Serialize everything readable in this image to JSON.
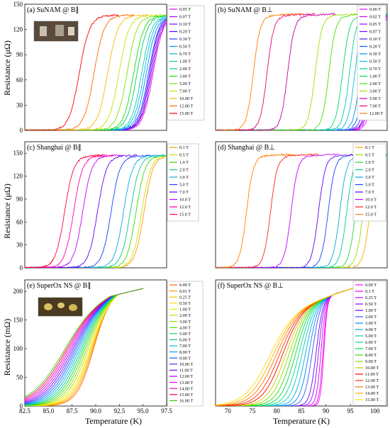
{
  "figure": {
    "ylabel_top": "Resistance (μΩ)",
    "ylabel_mid": "Resistance (μΩ)",
    "ylabel_bot": "Resistance (mΩ)",
    "xlabel": "Temperature (K)"
  },
  "chart_data": [
    {
      "id": "a",
      "type": "line",
      "title": "(a)  SuNAM @ B∥",
      "xlim": [
        82.5,
        95.0
      ],
      "ylim": [
        0,
        150
      ],
      "yticks": [
        0,
        30,
        60,
        90,
        120,
        150
      ],
      "xticks": [],
      "rn": 140,
      "width": 0.45,
      "legend_labels": [
        "0.05 T",
        "0.07 T",
        "0.10 T",
        "0.20 T",
        "0.30 T",
        "0.50 T",
        "0.70 T",
        "1.00 T",
        "2.00 T",
        "3.00 T",
        "5.00 T",
        "7.00 T",
        "10.00 T",
        "12.00 T",
        "15.00 T"
      ],
      "tc": [
        93.8,
        93.7,
        93.6,
        93.5,
        93.4,
        93.2,
        93.0,
        92.8,
        92.4,
        92.1,
        91.5,
        90.8,
        89.8,
        88.6,
        87.3
      ],
      "colors": [
        "#e000ff",
        "#b100f0",
        "#7c00e8",
        "#4e00f0",
        "#1f3cff",
        "#0088ff",
        "#00b6e8",
        "#00d0a8",
        "#00d060",
        "#10e000",
        "#7ee000",
        "#c8e000",
        "#ffb800",
        "#ff6a00",
        "#ff0000"
      ],
      "end_mode": "right"
    },
    {
      "id": "b",
      "type": "line",
      "title": "(b)  SuNAM @ B⊥",
      "xlim": [
        70,
        95
      ],
      "ylim": [
        0,
        150
      ],
      "yticks": [],
      "xticks": [],
      "rn": 140,
      "width": 0.5,
      "legend_labels": [
        "0.00 T",
        "0.02 T",
        "0.05 T",
        "0.07 T",
        "0.10 T",
        "0.20 T",
        "0.30 T",
        "0.50 T",
        "0.70 T",
        "1.00 T",
        "2.00 T",
        "3.00 T",
        "5.00 T",
        "7.00 T",
        "12.00 T"
      ],
      "tc": [
        93.2,
        92.9,
        92.7,
        92.5,
        92.2,
        91.7,
        91.1,
        90.3,
        89.5,
        88.5,
        86.5,
        84.5,
        80.5,
        77.5,
        75.5
      ],
      "colors": [
        "#ff00ff",
        "#d000ff",
        "#9c00ff",
        "#6a00ff",
        "#3a20ff",
        "#0055ff",
        "#0090ff",
        "#00c0e0",
        "#00d0a0",
        "#00d860",
        "#40e000",
        "#a0e000",
        "#c000a0",
        "#e60073",
        "#ff8000"
      ],
      "end_mode": "right"
    },
    {
      "id": "c",
      "type": "line",
      "title": "(c)  Shanghai @ B∥",
      "xlim": [
        82.5,
        95.0
      ],
      "ylim": [
        0,
        165
      ],
      "yticks": [
        0,
        30,
        60,
        90,
        120,
        150
      ],
      "xticks": [],
      "rn": 150,
      "width": 0.4,
      "legend_labels": [
        "0.1 T",
        "0.5 T",
        "1.0 T",
        "2.0 T",
        "3.0 T",
        "5.0 T",
        "7.0 T",
        "10.0 T",
        "12.0 T",
        "15.0 T"
      ],
      "tc": [
        93.0,
        92.8,
        92.3,
        91.8,
        91.2,
        90.1,
        88.9,
        87.6,
        86.8,
        86.0
      ],
      "colors": [
        "#ff9900",
        "#ccdd00",
        "#33dd00",
        "#00cc88",
        "#00aadd",
        "#1a40ff",
        "#5a00ff",
        "#c000ff",
        "#ff00aa",
        "#ff0033"
      ],
      "end_mode": "right"
    },
    {
      "id": "d",
      "type": "line",
      "title": "(d)  Shanghai @ B⊥",
      "xlim": [
        70,
        95
      ],
      "ylim": [
        0,
        165
      ],
      "yticks": [],
      "xticks": [],
      "rn": 150,
      "width": 0.5,
      "legend_labels": [
        "0.1 T",
        "0.5 T",
        "1.0 T",
        "2.0 T",
        "3.0 T",
        "5.0 T",
        "7.0 T",
        "10.0 T",
        "12.0 T",
        "15.0 T"
      ],
      "tc": [
        92.5,
        91.5,
        90.4,
        89.1,
        88.1,
        86.4,
        85.0,
        81.0,
        78.0,
        74.5
      ],
      "colors": [
        "#ffaa00",
        "#99dd00",
        "#22dd33",
        "#00cc99",
        "#00aadd",
        "#1a40ff",
        "#5a00ff",
        "#c000ff",
        "#ff2020",
        "#ff8000"
      ],
      "end_mode": "right"
    },
    {
      "id": "e",
      "type": "line",
      "title": "(e)  SuperOx NS @ B∥",
      "xlim": [
        82.5,
        97.5
      ],
      "ylim": [
        0,
        220
      ],
      "yticks": [
        0,
        50,
        100,
        150,
        200
      ],
      "xticks": [
        82.5,
        85.0,
        87.5,
        90.0,
        92.5,
        95.0,
        97.5
      ],
      "xtick_labels": [
        "82.5",
        "85.0",
        "87.5",
        "90.0",
        "92.5",
        "95.0",
        "97.5"
      ],
      "rn": 205,
      "legend_labels": [
        "0.00 T",
        "0.01 T",
        "0.25 T",
        "0.50 T",
        "1.00 T",
        "2.00 T",
        "3.00 T",
        "4.00 T",
        "5.00 T",
        "6.00 T",
        "7.00 T",
        "8.00 T",
        "9.00 T",
        "10.00 T",
        "11.00 T",
        "12.00 T",
        "13.00 T",
        "14.00 T",
        "15.00 T",
        "16.00 T"
      ],
      "tc": [
        89.7,
        89.6,
        89.5,
        89.4,
        89.3,
        89.1,
        88.9,
        88.7,
        88.5,
        88.3,
        88.1,
        87.9,
        87.7,
        87.5,
        87.3,
        87.1,
        86.9,
        86.7,
        86.5,
        86.3
      ],
      "colors": [
        "#ff6600",
        "#ff9900",
        "#ffbb00",
        "#ffdd00",
        "#eeee00",
        "#bbdd00",
        "#88dd00",
        "#44dd00",
        "#00dd44",
        "#00cc88",
        "#00bbcc",
        "#0099ee",
        "#0066ff",
        "#3333ff",
        "#7700ff",
        "#aa00ff",
        "#dd00dd",
        "#ee0099",
        "#ff0044",
        "#33cc00"
      ],
      "end_mode": "superox_par"
    },
    {
      "id": "f",
      "type": "line",
      "title": "(f)  SuperOx NS @ B⊥",
      "xlim": [
        67.5,
        102.5
      ],
      "ylim": [
        0,
        220
      ],
      "yticks": [],
      "xticks": [
        70,
        75,
        80,
        85,
        90,
        95,
        100
      ],
      "xtick_labels": [
        "70",
        "75",
        "80",
        "85",
        "90",
        "95",
        "100"
      ],
      "rn": 205,
      "legend_labels": [
        "0.00 T",
        "0.1 T",
        "0.25 T",
        "0.50 T",
        "1.00 T",
        "2.00 T",
        "3.00 T",
        "4.00 T",
        "5.00 T",
        "6.00 T",
        "7.00 T",
        "8.00 T",
        "9.00 T",
        "10.00 T",
        "11.00 T",
        "12.00 T",
        "13.00 T",
        "14.00 T",
        "15.00 T"
      ],
      "tc": [
        89.6,
        89.4,
        89.0,
        88.5,
        88.0,
        87.2,
        86.5,
        85.8,
        85.1,
        84.4,
        83.7,
        83.0,
        82.3,
        81.6,
        80.9,
        80.2,
        79.5,
        78.8,
        78.1
      ],
      "colors": [
        "#ff00ff",
        "#ee00ee",
        "#cc00ff",
        "#9900ff",
        "#6600ff",
        "#3355ff",
        "#0088ff",
        "#00aaee",
        "#00ccbb",
        "#00dd88",
        "#00dd44",
        "#33dd00",
        "#88dd00",
        "#cccc00",
        "#ff0000",
        "#ff3300",
        "#ff7700",
        "#ffaa00",
        "#ffdd00"
      ],
      "end_mode": "superox_perp"
    }
  ]
}
